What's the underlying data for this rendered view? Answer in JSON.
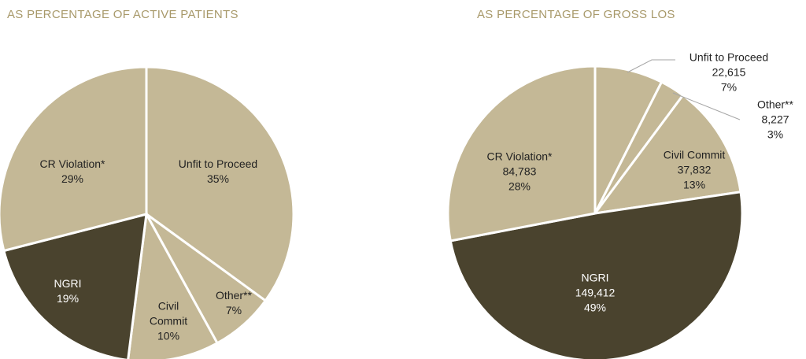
{
  "chart_data": [
    {
      "type": "pie",
      "title": "AS PERCENTAGE OF ACTIVE PATIENTS",
      "categories": [
        "Unfit to Proceed",
        "Other**",
        "Civil Commit",
        "NGRI",
        "CR Violation*"
      ],
      "values": [
        35,
        7,
        10,
        19,
        29
      ],
      "colors": [
        "#c4b896",
        "#c4b896",
        "#c4b896",
        "#4a432e",
        "#c4b896"
      ]
    },
    {
      "type": "pie",
      "title": "AS PERCENTAGE OF GROSS LOS",
      "categories": [
        "Unfit to Proceed",
        "Other**",
        "Civil Commit",
        "NGRI",
        "CR Violation*"
      ],
      "values": [
        22615,
        8227,
        37832,
        149412,
        84783
      ],
      "value_labels": [
        "22,615",
        "8,227",
        "37,832",
        "149,412",
        "84,783"
      ],
      "percents": [
        7,
        3,
        13,
        49,
        28
      ],
      "colors": [
        "#c4b896",
        "#c4b896",
        "#c4b896",
        "#4a432e",
        "#c4b896"
      ]
    }
  ]
}
